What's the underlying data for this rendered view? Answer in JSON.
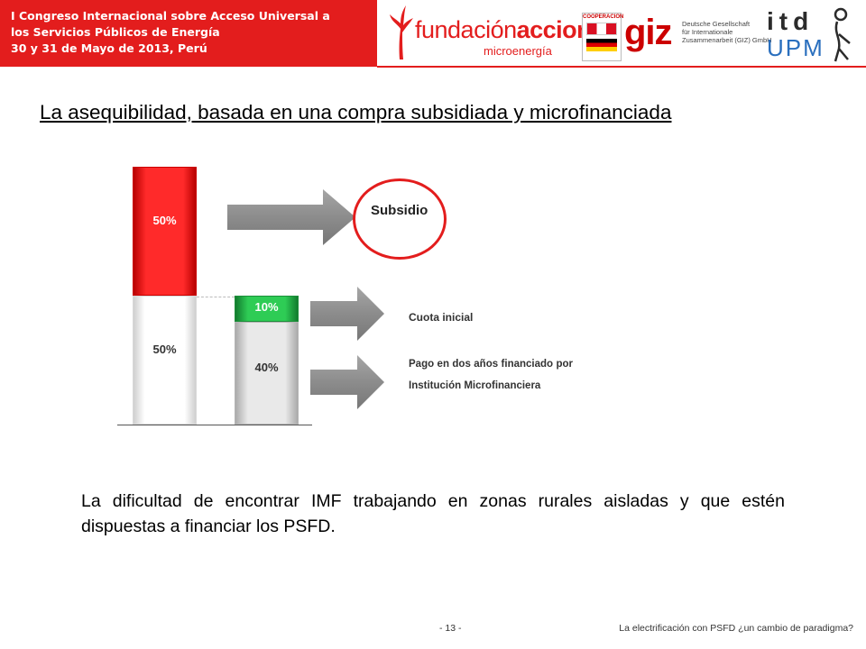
{
  "header": {
    "line1": "I Congreso Internacional sobre Acceso Universal a",
    "line2": "los Servicios Públicos de Energía",
    "line3": "30 y 31 de Mayo de 2013, Perú",
    "band_color": "#e31d1d"
  },
  "logos": {
    "fundacion_part1": "fundación",
    "fundacion_part2": "acciona",
    "fundacion_sub": "microenergía",
    "coop_title": "COOPERACION",
    "giz_mark": "giz",
    "giz_line1": "Deutsche Gesellschaft",
    "giz_line2": "für Internationale",
    "giz_line3": "Zusammenarbeit (GIZ) GmbH",
    "itd_top": "itd",
    "itd_bottom": "UPM"
  },
  "slide": {
    "title": "La asequibilidad, basada en una compra subsidiada y microfinanciada"
  },
  "chart_data": {
    "type": "bar",
    "stacked": true,
    "bars": [
      {
        "segments": [
          {
            "value": 50,
            "label": "50%",
            "color": "#ffffff"
          },
          {
            "value": 50,
            "label": "50%",
            "color": "#ff2a2a"
          }
        ]
      },
      {
        "segments": [
          {
            "value": 40,
            "label": "40%",
            "color": "#e0e0e0"
          },
          {
            "value": 10,
            "label": "10%",
            "color": "#2ecc55"
          }
        ]
      }
    ],
    "annotations": [
      {
        "text": "Subsidio",
        "highlighted": true,
        "color": "#e31d1d"
      },
      {
        "text": "Cuota inicial"
      },
      {
        "text": "Pago en dos años financiado por Institución Microfinanciera"
      }
    ],
    "ylim": [
      0,
      100
    ]
  },
  "body": {
    "text": "La dificultad de encontrar IMF trabajando en zonas rurales aisladas y que estén dispuestas a financiar los PSFD."
  },
  "footer": {
    "page": "- 13 -",
    "title": "La electrificación con PSFD ¿un cambio de paradigma?"
  }
}
